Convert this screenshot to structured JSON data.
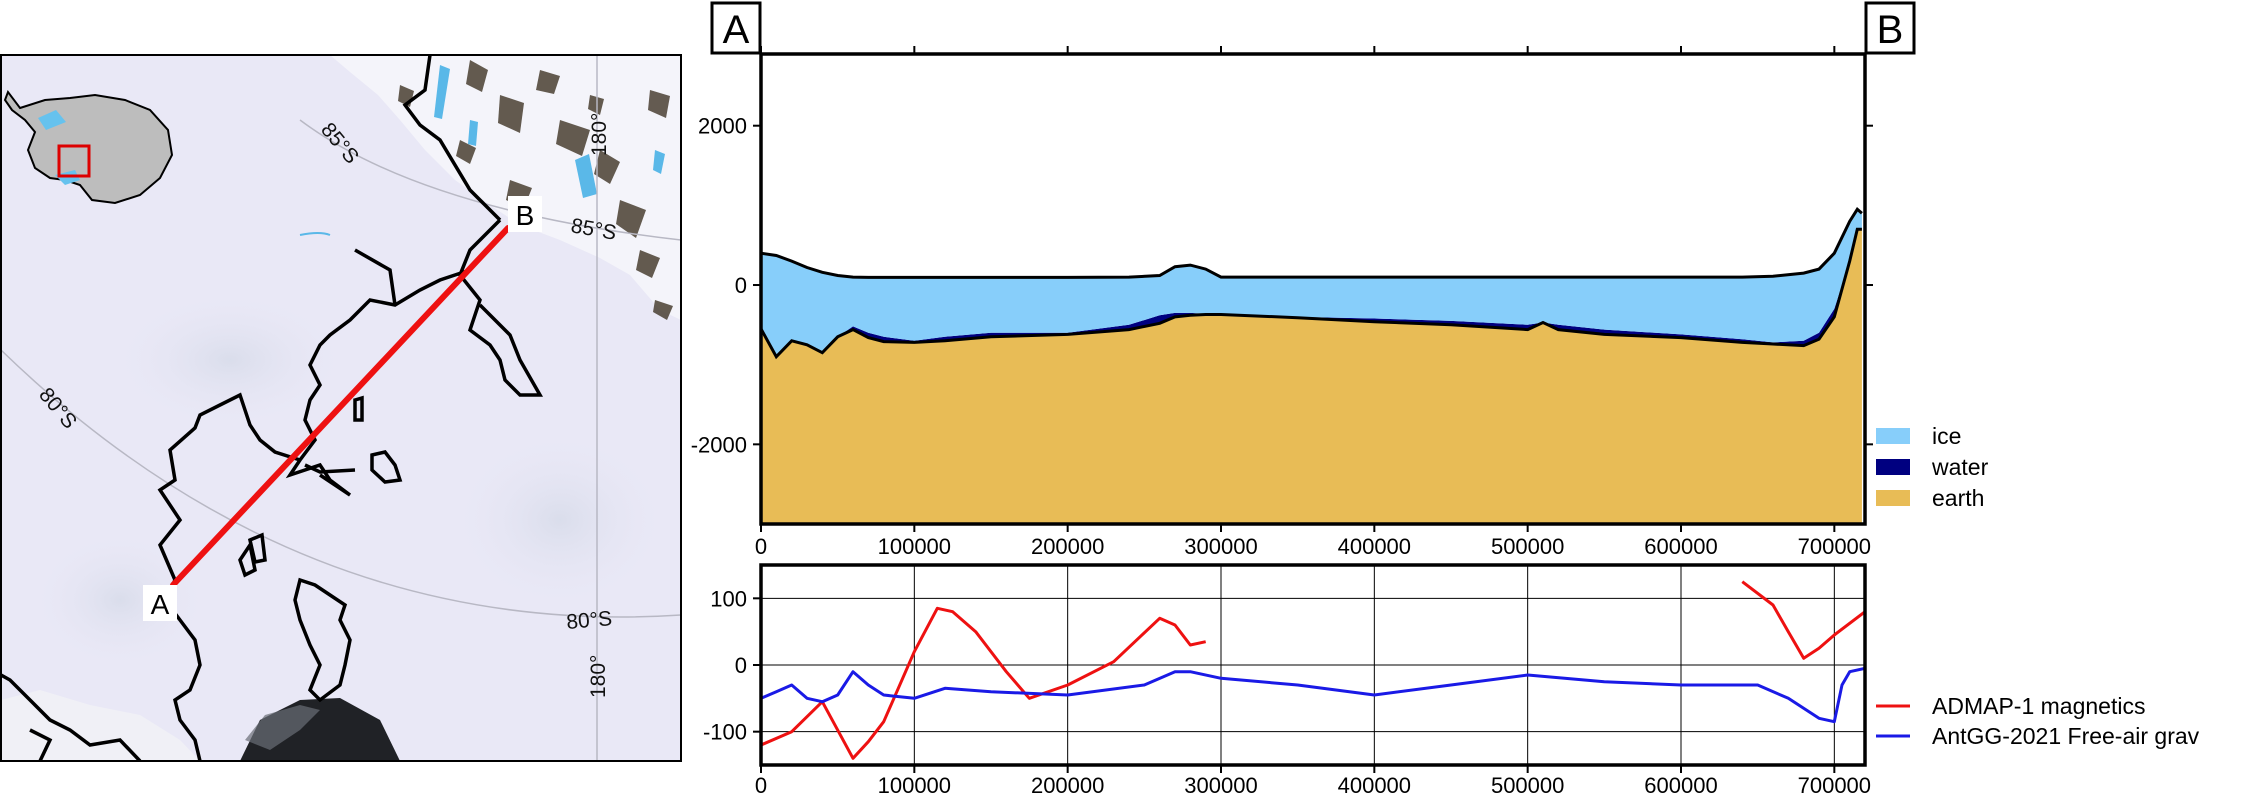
{
  "map": {
    "point_a": "A",
    "point_b": "B",
    "graticule_labels": [
      "85°S",
      "85°S",
      "180°",
      "80°S",
      "80°S",
      "180°"
    ],
    "colors": {
      "profile_line": "#ee1111",
      "coastline": "#000000",
      "inset_box": "#dd0000"
    }
  },
  "chart_data": [
    {
      "type": "area",
      "subtype": "stacked cross-section",
      "start_label": "A",
      "end_label": "B",
      "xlim": [
        0,
        720000
      ],
      "ylim": [
        -3000,
        2900
      ],
      "xticks": [
        0,
        100000,
        200000,
        300000,
        400000,
        500000,
        600000,
        700000
      ],
      "yticks": [
        2000,
        0,
        -2000
      ],
      "grid": false,
      "legend_position": "bottom-right outside",
      "x": [
        0,
        10000,
        20000,
        30000,
        40000,
        50000,
        60000,
        70000,
        80000,
        100000,
        120000,
        150000,
        200000,
        240000,
        260000,
        270000,
        280000,
        290000,
        300000,
        350000,
        400000,
        450000,
        500000,
        510000,
        520000,
        550000,
        600000,
        640000,
        660000,
        680000,
        690000,
        700000,
        710000,
        715000,
        718000
      ],
      "surface": [
        400,
        370,
        300,
        220,
        160,
        120,
        100,
        95,
        95,
        95,
        95,
        95,
        95,
        100,
        120,
        230,
        250,
        200,
        100,
        100,
        100,
        100,
        100,
        100,
        100,
        100,
        100,
        100,
        110,
        150,
        200,
        400,
        800,
        950,
        900
      ],
      "ice_base": [
        -550,
        -900,
        -700,
        -750,
        -850,
        -650,
        -520,
        -600,
        -650,
        -700,
        -650,
        -600,
        -600,
        -500,
        -380,
        -350,
        -350,
        -360,
        -360,
        -400,
        -420,
        -450,
        -500,
        -470,
        -500,
        -560,
        -620,
        -680,
        -720,
        -700,
        -600,
        -300,
        300,
        700,
        700
      ],
      "bed": [
        -550,
        -900,
        -700,
        -750,
        -850,
        -650,
        -560,
        -660,
        -710,
        -720,
        -700,
        -650,
        -620,
        -560,
        -480,
        -400,
        -380,
        -370,
        -370,
        -410,
        -460,
        -500,
        -560,
        -470,
        -560,
        -620,
        -660,
        -720,
        -740,
        -760,
        -680,
        -400,
        300,
        700,
        700
      ],
      "layers": [
        {
          "name": "ice",
          "color": "#87cefa"
        },
        {
          "name": "water",
          "color": "#000080"
        },
        {
          "name": "earth",
          "color": "#e8bc56"
        }
      ]
    },
    {
      "type": "line",
      "xlim": [
        0,
        720000
      ],
      "ylim": [
        -150,
        150
      ],
      "xticks": [
        0,
        100000,
        200000,
        300000,
        400000,
        500000,
        600000,
        700000
      ],
      "yticks": [
        100,
        0,
        -100
      ],
      "grid": true,
      "legend_position": "right outside",
      "series": [
        {
          "name": "ADMAP-1 magnetics",
          "color": "#ee1111",
          "segments": [
            {
              "x": [
                0,
                20000,
                40000,
                60000,
                70000,
                80000,
                100000,
                115000,
                125000,
                140000,
                160000,
                175000,
                200000,
                230000,
                260000,
                270000,
                280000,
                290000
              ],
              "y": [
                -120,
                -100,
                -55,
                -140,
                -115,
                -85,
                20,
                85,
                80,
                50,
                -10,
                -50,
                -30,
                5,
                70,
                60,
                30,
                35
              ]
            },
            {
              "x": [
                640000,
                660000,
                670000,
                680000,
                690000,
                700000,
                720000
              ],
              "y": [
                125,
                90,
                50,
                10,
                25,
                45,
                80
              ]
            }
          ]
        },
        {
          "name": "AntGG-2021 Free-air grav",
          "color": "#1a1ae6",
          "segments": [
            {
              "x": [
                0,
                10000,
                20000,
                30000,
                40000,
                50000,
                60000,
                70000,
                80000,
                100000,
                120000,
                150000,
                200000,
                250000,
                270000,
                280000,
                300000,
                350000,
                400000,
                450000,
                500000,
                550000,
                600000,
                650000,
                670000,
                690000,
                700000,
                705000,
                710000,
                720000
              ],
              "y": [
                -50,
                -40,
                -30,
                -50,
                -55,
                -45,
                -10,
                -30,
                -45,
                -50,
                -35,
                -40,
                -45,
                -30,
                -10,
                -10,
                -20,
                -30,
                -45,
                -30,
                -15,
                -25,
                -30,
                -30,
                -50,
                -80,
                -85,
                -30,
                -10,
                -5
              ]
            }
          ]
        }
      ]
    }
  ]
}
